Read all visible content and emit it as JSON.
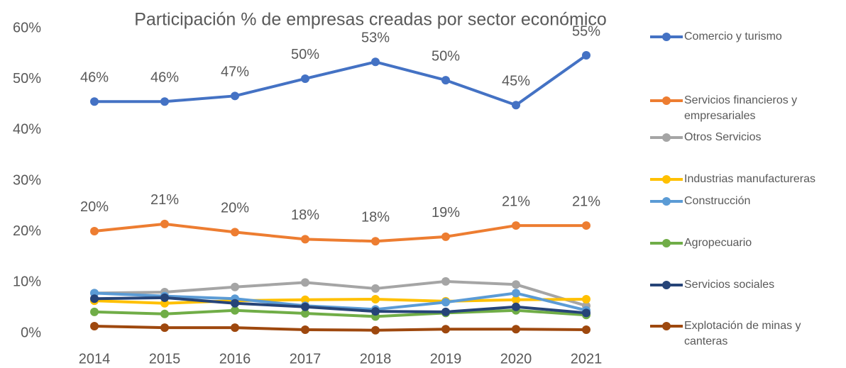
{
  "chart_data": {
    "type": "line",
    "title": "Participación % de empresas creadas por sector económico",
    "categories": [
      "2014",
      "2015",
      "2016",
      "2017",
      "2018",
      "2019",
      "2020",
      "2021"
    ],
    "ylim": [
      0,
      60
    ],
    "yticks": [
      {
        "value": 0,
        "label": "0%"
      },
      {
        "value": 10,
        "label": "10%"
      },
      {
        "value": 20,
        "label": "20%"
      },
      {
        "value": 30,
        "label": "30%"
      },
      {
        "value": 40,
        "label": "40%"
      },
      {
        "value": 50,
        "label": "50%"
      },
      {
        "value": 60,
        "label": "60%"
      }
    ],
    "legend": "right",
    "series": [
      {
        "name": "Comercio y turismo",
        "color": "#4472c4",
        "values": [
          45.6,
          45.6,
          46.7,
          50.1,
          53.4,
          49.8,
          44.9,
          54.7
        ],
        "value_labels": [
          "46%",
          "46%",
          "47%",
          "50%",
          "53%",
          "50%",
          "45%",
          "55%"
        ]
      },
      {
        "name": "Servicios financieros y empresariales",
        "color": "#ed7d31",
        "values": [
          20.1,
          21.5,
          19.9,
          18.5,
          18.1,
          19.0,
          21.2,
          21.2
        ],
        "value_labels": [
          "20%",
          "21%",
          "20%",
          "18%",
          "18%",
          "19%",
          "21%",
          "21%"
        ]
      },
      {
        "name": "Otros Servicios",
        "color": "#a5a5a5",
        "values": [
          7.9,
          8.1,
          9.1,
          10.0,
          8.8,
          10.2,
          9.6,
          5.4
        ]
      },
      {
        "name": "Industrias manufactureras",
        "color": "#ffc000",
        "values": [
          6.4,
          5.9,
          6.4,
          6.6,
          6.7,
          6.3,
          6.6,
          6.7
        ]
      },
      {
        "name": "Construcción",
        "color": "#5b9bd5",
        "values": [
          7.9,
          7.3,
          6.8,
          5.4,
          4.7,
          6.1,
          7.9,
          4.5
        ]
      },
      {
        "name": "Agropecuario",
        "color": "#70ad47",
        "values": [
          4.2,
          3.8,
          4.5,
          3.9,
          3.3,
          4.0,
          4.5,
          3.6
        ]
      },
      {
        "name": "Servicios sociales",
        "color": "#264478",
        "values": [
          6.8,
          7.0,
          5.9,
          5.2,
          4.3,
          4.2,
          5.2,
          4.0
        ]
      },
      {
        "name": "Explotación de minas y canteras",
        "color": "#9e480e",
        "values": [
          1.4,
          1.1,
          1.1,
          0.7,
          0.6,
          0.8,
          0.8,
          0.7
        ]
      }
    ]
  }
}
